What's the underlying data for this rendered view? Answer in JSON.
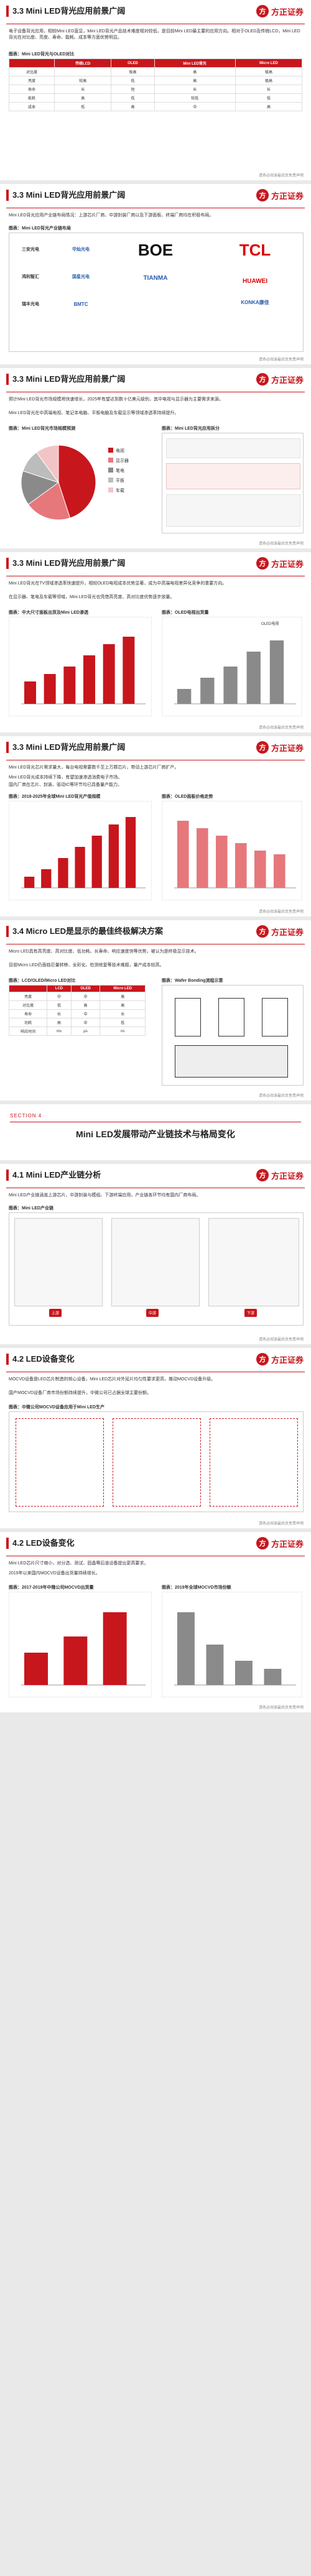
{
  "brand": "方正证券",
  "footer_text": "请务必阅读最后页免责声明",
  "slides": [
    {
      "title": "3.3 Mini LED背光应用前景广阔",
      "bullets": [
        "电子设备背光应用，相较Mini LED直显，Mini LED背光产品技术难度相对较低，是目前Mini LED最主要的应用方向。相对于OLED及传统LCD，Mini LED背光在对比度、亮度、寿命、能耗、成本等方面优势明显。"
      ],
      "table": {
        "caption": "图表：Mini LED背光与OLED对比",
        "headers": [
          "",
          "传统LCD",
          "OLED",
          "Mini LED背光",
          "Micro LED"
        ],
        "rows": [
          [
            "对比度",
            "",
            "极高",
            "高",
            "极高"
          ],
          [
            "亮度",
            "较高",
            "低",
            "高",
            "极高"
          ],
          [
            "寿命",
            "长",
            "短",
            "长",
            "长"
          ],
          [
            "能耗",
            "高",
            "低",
            "较低",
            "低"
          ],
          [
            "成本",
            "低",
            "高",
            "中",
            "高"
          ]
        ]
      }
    },
    {
      "title": "3.3 Mini LED背光应用前景广阔",
      "bullets": [
        "Mini LED背光应用产业链布局情况：上游芯片厂商、中游封装厂商以及下游面板、终端厂商均在积极布局。"
      ],
      "caption": "图表：Mini LED背光产业链布局",
      "logos": [
        "三安光电",
        "华灿光电",
        "BOE",
        "TCL",
        "鸿利智汇",
        "国星光电",
        "TIANMA",
        "HUAWEI",
        "瑞丰光电",
        "BMTC",
        "KONKA康佳"
      ]
    },
    {
      "title": "3.3 Mini LED背光应用前景广阔",
      "bullets": [
        "预计Mini LED背光市场规模将快速增长，2025年有望达到数十亿美元级别，其中电视与显示器为主要需求来源。",
        "Mini LED背光在中高端电视、笔记本电脑、平板电脑及车载显示等领域渗透率持续提升。"
      ],
      "caption_left": "图表：Mini LED背光市场规模预测",
      "caption_right": "图表：Mini LED背光应用拆分",
      "pie": {
        "segments": [
          {
            "name": "电视",
            "value": 45
          },
          {
            "name": "显示器",
            "value": 20
          },
          {
            "name": "笔电",
            "value": 15
          },
          {
            "name": "平板",
            "value": 10
          },
          {
            "name": "车载",
            "value": 10
          }
        ]
      }
    },
    {
      "title": "3.3 Mini LED背光应用前景广阔",
      "bullets": [
        "Mini LED背光在TV领域渗透率快速提升，相较OLED电视成本优势显著，成为中高端电视差异化竞争的重要方向。",
        "在显示器、笔电及车载等领域，Mini LED背光也凭借高亮度、高对比度优势逐步放量。"
      ],
      "caption_left": "图表：中大尺寸面板出货及Mini LED渗透",
      "caption_right": "图表：OLED电视出货量",
      "chart_label": "OLED电视"
    },
    {
      "title": "3.3 Mini LED背光应用前景广阔",
      "bullets": [
        "Mini LED背光芯片需求量大，每台电视需要数千至上万颗芯片，带动上游芯片厂商扩产。",
        "Mini LED背光成本持续下降，有望加速渗透消费电子市场。",
        "国内厂商在芯片、封装、驱动IC等环节均已具备量产能力。"
      ],
      "caption_left": "图表：2018-2025年全球Mini LED背光产值规模",
      "caption_right": "图表：OLED面板价格走势"
    },
    {
      "title": "3.4 Micro LED是显示的最佳终极解决方案",
      "bullets": [
        "Micro LED具有高亮度、高对比度、低功耗、长寿命、响应速度快等优势，被认为是终极显示技术。",
        "目前Micro LED仍面临巨量转移、全彩化、检测修复等技术难题，量产成本较高。"
      ],
      "table": {
        "caption": "图表：LCD/OLED/Micro LED对比",
        "headers": [
          "",
          "LCD",
          "OLED",
          "Micro LED"
        ],
        "rows": [
          [
            "亮度",
            "中",
            "中",
            "高"
          ],
          [
            "对比度",
            "低",
            "高",
            "高"
          ],
          [
            "寿命",
            "长",
            "中",
            "长"
          ],
          [
            "功耗",
            "高",
            "中",
            "低"
          ],
          [
            "响应时间",
            "ms",
            "μs",
            "ns"
          ]
        ]
      },
      "caption_right": "图表：Wafer Bonding流程示意"
    }
  ],
  "section": {
    "number": "SECTION 4",
    "title": "Mini LED发展带动产业链技术与格局变化"
  },
  "slides2": [
    {
      "title": "4.1 Mini LED产业链分析",
      "bullets": [
        "Mini LED产业链涵盖上游芯片、中游封装与模组、下游终端应用，产业链各环节均有国内厂商布局。"
      ],
      "caption": "图表：Mini LED产业链",
      "stages": [
        "上游",
        "中游",
        "下游"
      ]
    },
    {
      "title": "4.2 LED设备变化",
      "bullets": [
        "MOCVD设备是LED芯片制造的核心设备，Mini LED芯片对外延片均匀性要求更高，推动MOCVD设备升级。",
        "国产MOCVD设备厂商市场份额持续提升，中微公司已占据全球主要份额。"
      ],
      "caption": "图表：中微公司MOCVD设备应用于Mini LED生产"
    },
    {
      "title": "4.2 LED设备变化",
      "bullets": [
        "Mini LED芯片尺寸缩小，对分选、测试、固晶等后道设备提出更高要求。",
        "2019年以来国内MOCVD设备出货量持续增长。"
      ],
      "caption_left": "图表：2017-2019年中微公司MOCVD出货量",
      "caption_right": "图表：2019年全球MOCVD市场份额"
    }
  ]
}
